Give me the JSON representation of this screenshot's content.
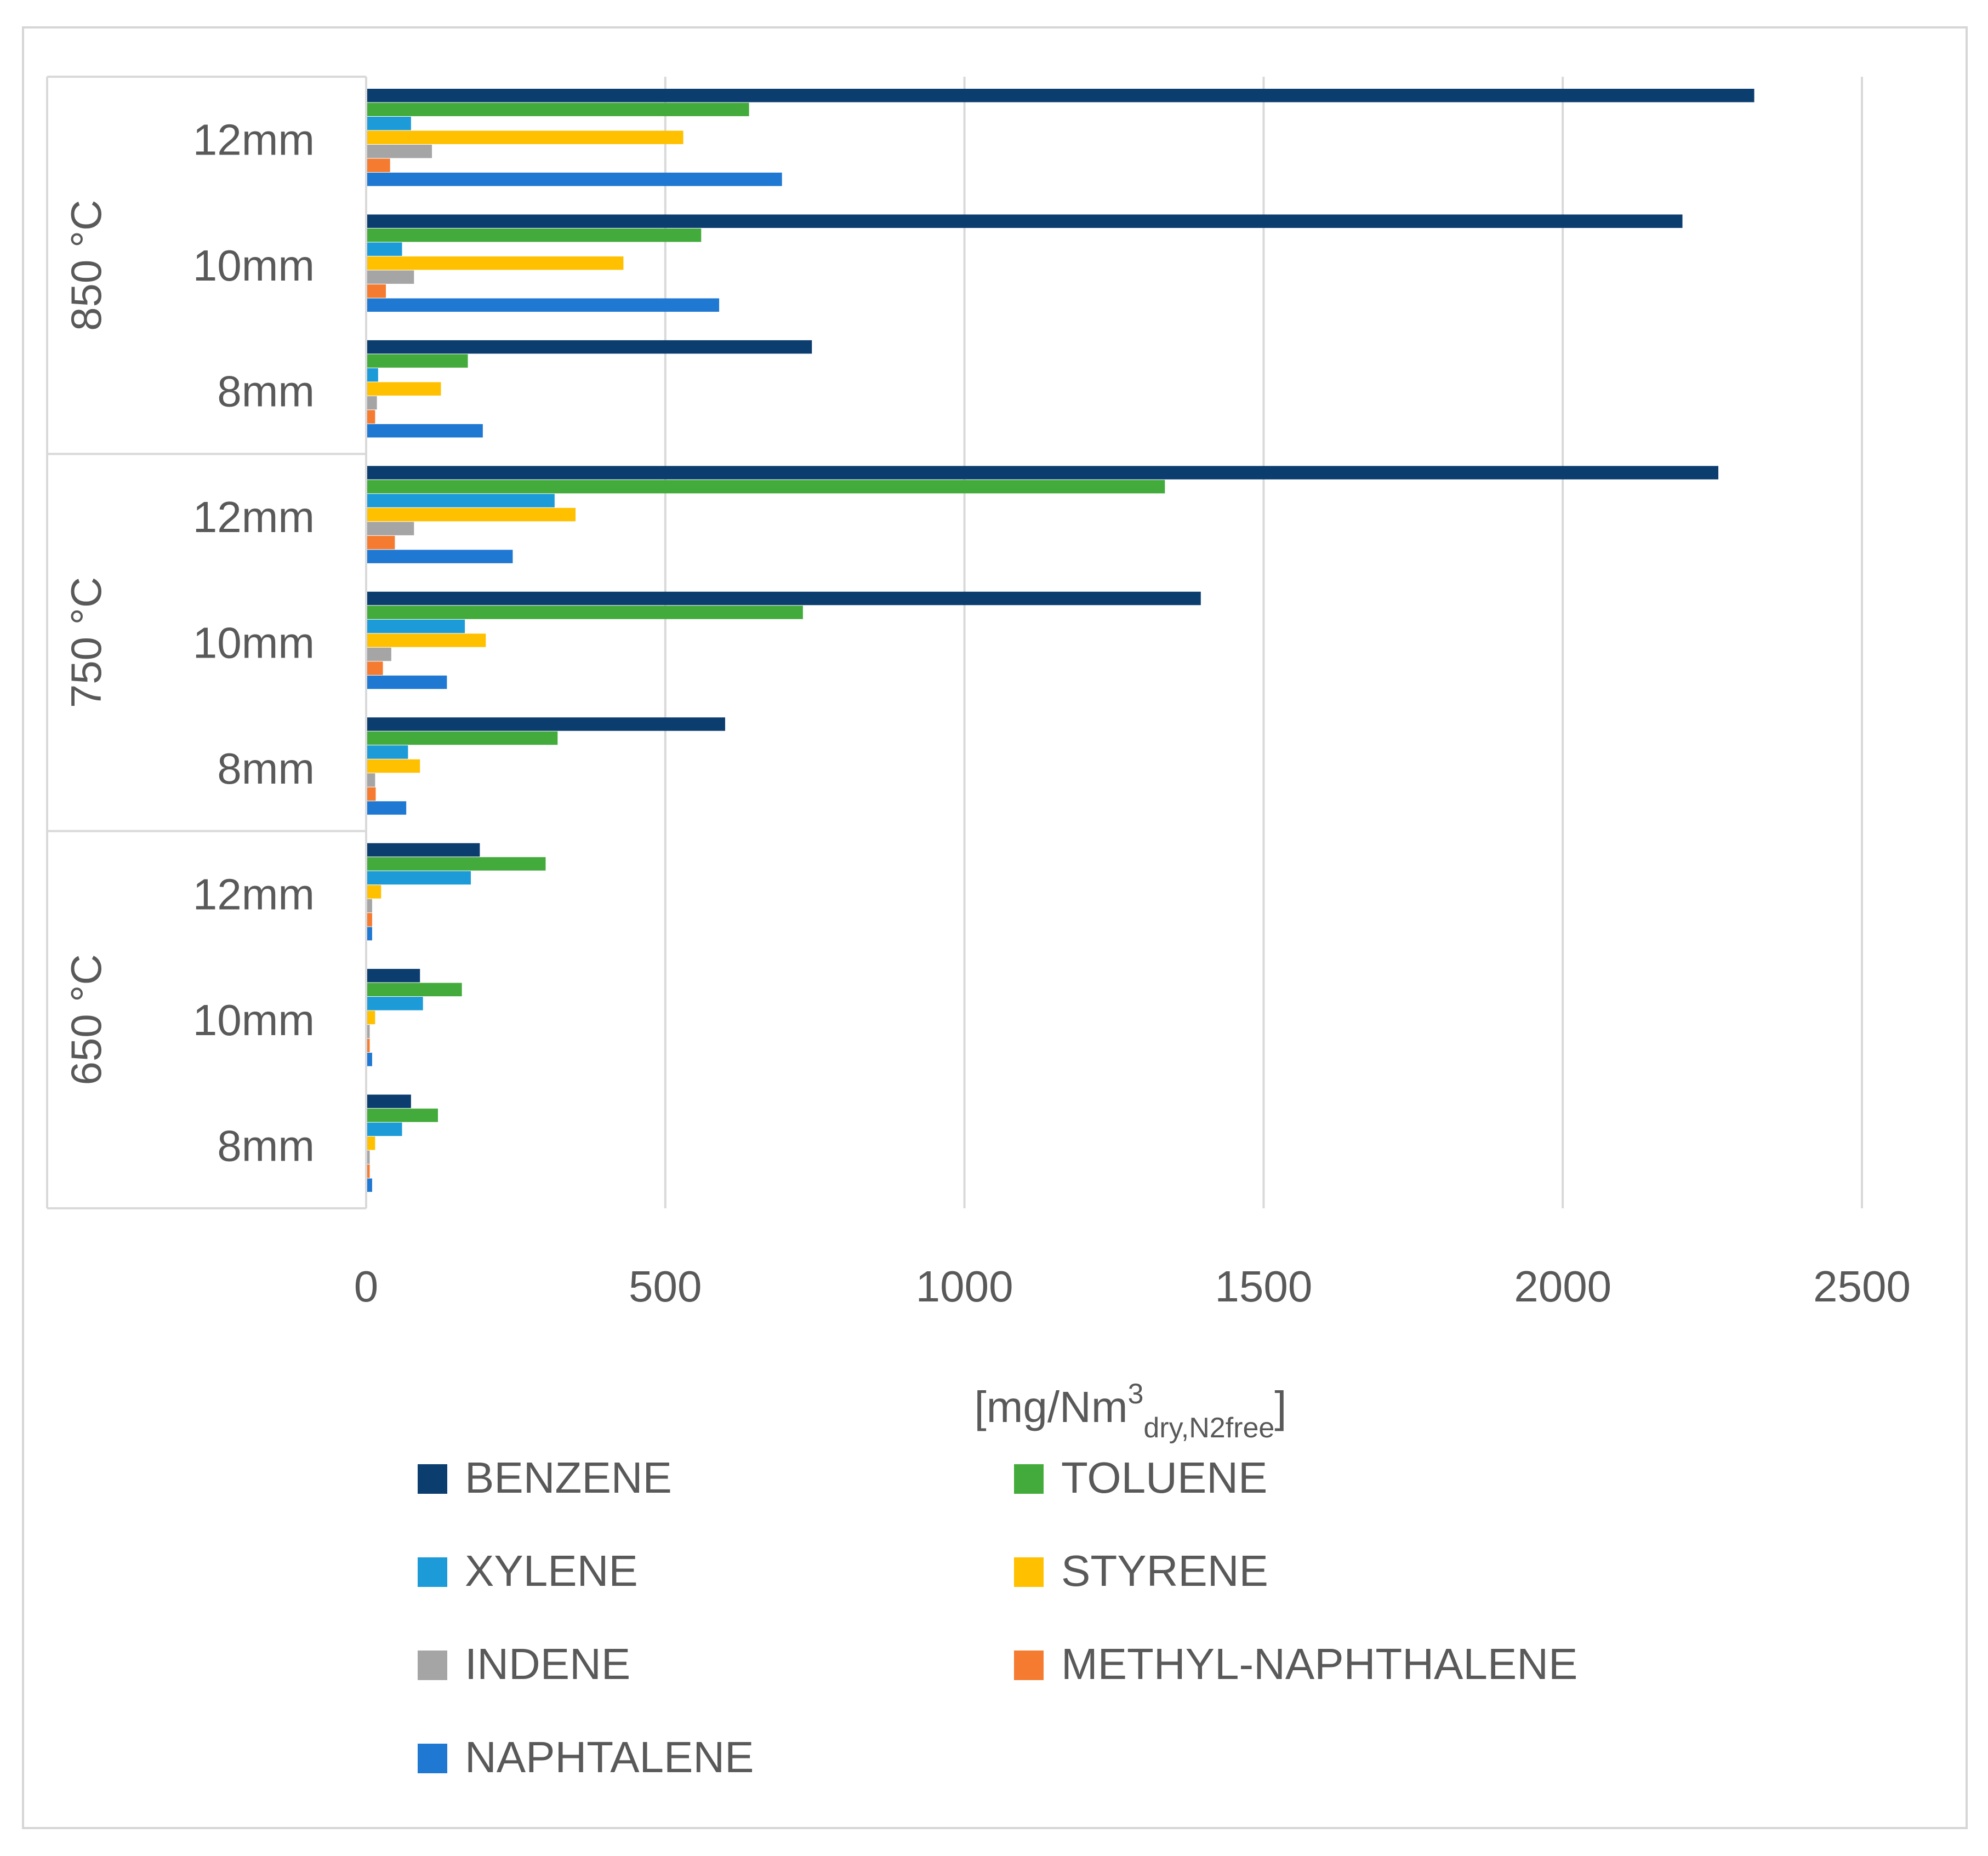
{
  "chart_data": {
    "type": "bar",
    "orientation": "horizontal",
    "title": "",
    "xlabel": "[mg/Nm3dry,N2free]",
    "xlabel_parts": {
      "main": "[mg/Nm",
      "sup": "3",
      "sub": "dry,N2free",
      "close": "]"
    },
    "xlim": [
      0,
      2500
    ],
    "xticks": [
      0,
      500,
      1000,
      1500,
      2000,
      2500
    ],
    "grid": true,
    "legend_position": "bottom",
    "groups": [
      {
        "label": "850 °C",
        "categories": [
          "12mm",
          "10mm",
          "8mm"
        ]
      },
      {
        "label": "750 °C",
        "categories": [
          "12mm",
          "10mm",
          "8mm"
        ]
      },
      {
        "label": "650 °C",
        "categories": [
          "12mm",
          "10mm",
          "8mm"
        ]
      }
    ],
    "series": [
      {
        "name": "BENZENE",
        "color": "#0b3d6f",
        "values": [
          [
            2320,
            2200,
            745
          ],
          [
            2260,
            1395,
            600
          ],
          [
            190,
            90,
            75
          ]
        ]
      },
      {
        "name": "TOLUENE",
        "color": "#43ab3b",
        "values": [
          [
            640,
            560,
            170
          ],
          [
            1335,
            730,
            320
          ],
          [
            300,
            160,
            120
          ]
        ]
      },
      {
        "name": "XYLENE",
        "color": "#1c9bd8",
        "values": [
          [
            75,
            60,
            20
          ],
          [
            315,
            165,
            70
          ],
          [
            175,
            95,
            60
          ]
        ]
      },
      {
        "name": "STYRENE",
        "color": "#ffc000",
        "values": [
          [
            530,
            430,
            125
          ],
          [
            350,
            200,
            90
          ],
          [
            25,
            15,
            15
          ]
        ]
      },
      {
        "name": "INDENE",
        "color": "#a5a5a5",
        "values": [
          [
            110,
            80,
            18
          ],
          [
            80,
            42,
            15
          ],
          [
            10,
            6,
            6
          ]
        ]
      },
      {
        "name": "METHYL-NAPHTHALENE",
        "color": "#f47b30",
        "values": [
          [
            40,
            33,
            15
          ],
          [
            48,
            28,
            16
          ],
          [
            10,
            6,
            6
          ]
        ]
      },
      {
        "name": "NAPHTALENE",
        "color": "#1f78d1",
        "values": [
          [
            695,
            590,
            195
          ],
          [
            245,
            135,
            67
          ],
          [
            10,
            10,
            10
          ]
        ]
      }
    ]
  }
}
